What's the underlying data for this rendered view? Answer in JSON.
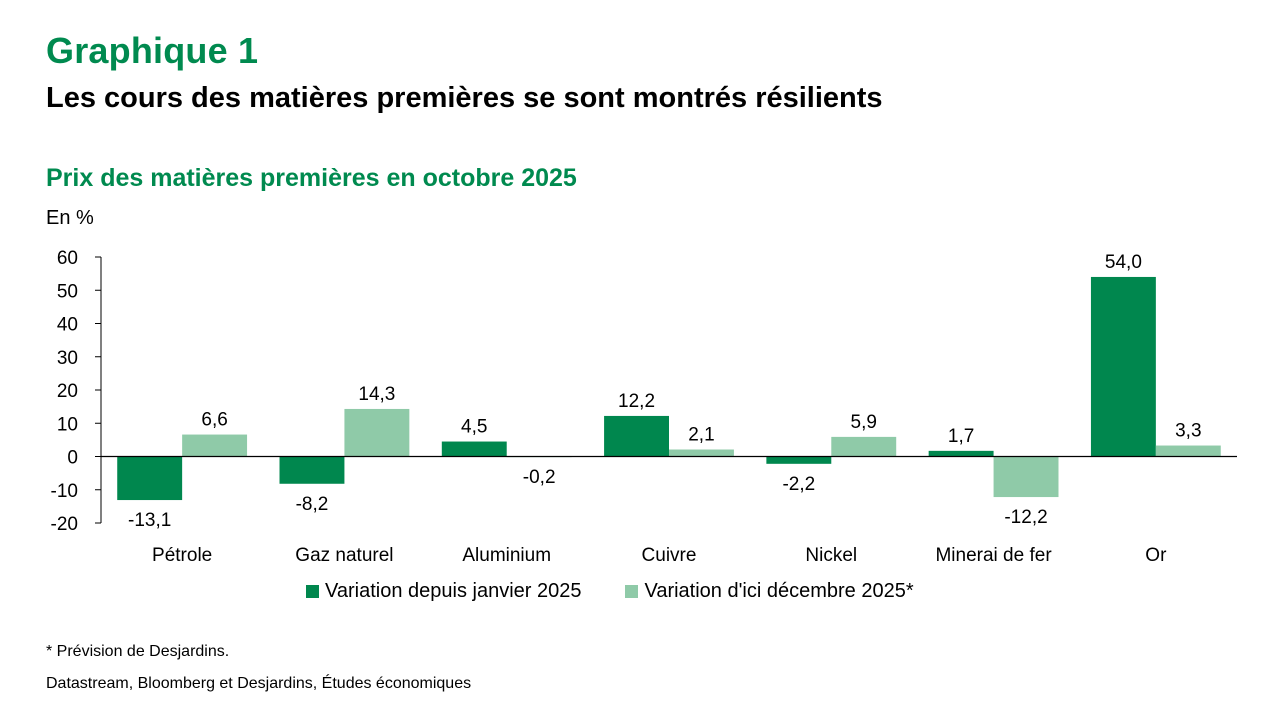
{
  "header": {
    "figure_label": "Graphique 1",
    "headline": "Les cours des matières premières se sont montrés résilients"
  },
  "footer": {
    "note": "* Prévision de Desjardins.",
    "source": "Datastream, Bloomberg et Desjardins, Études économiques"
  },
  "colors": {
    "brand": "#008a4f",
    "series1": "#00874e",
    "series2": "#8fcaa8"
  },
  "chart_data": {
    "type": "bar",
    "title": "Prix des matières premières en octobre 2025",
    "ylabel": "En %",
    "xlabel": "",
    "ylim": [
      -20,
      60
    ],
    "yticks": [
      60,
      50,
      40,
      30,
      20,
      10,
      0,
      -10,
      -20
    ],
    "grid": false,
    "legend_position": "bottom",
    "categories": [
      "Pétrole",
      "Gaz naturel",
      "Aluminium",
      "Cuivre",
      "Nickel",
      "Minerai de fer",
      "Or"
    ],
    "series": [
      {
        "name": "Variation depuis janvier 2025",
        "values": [
          -13.1,
          -8.2,
          4.5,
          12.2,
          -2.2,
          1.7,
          54.0
        ],
        "labels": [
          "-13,1",
          "-8,2",
          "4,5",
          "12,2",
          "-2,2",
          "1,7",
          "54,0"
        ]
      },
      {
        "name": "Variation d'ici décembre 2025*",
        "values": [
          6.6,
          14.3,
          -0.2,
          2.1,
          5.9,
          -12.2,
          3.3
        ],
        "labels": [
          "6,6",
          "14,3",
          "-0,2",
          "2,1",
          "5,9",
          "-12,2",
          "3,3"
        ]
      }
    ]
  }
}
